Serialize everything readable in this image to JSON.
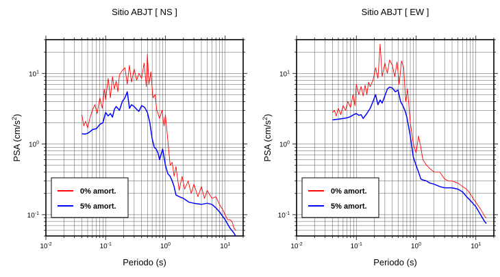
{
  "chart_data": [
    {
      "type": "line",
      "title": "Sitio ABJT [ NS ]",
      "xlabel": "Periodo (s)",
      "ylabel_prefix": "PSA (cm/s",
      "ylabel_sup": "2",
      "ylabel_suffix": ")",
      "x_scale": "log",
      "y_scale": "log",
      "xlim": [
        0.01,
        20
      ],
      "ylim": [
        0.05,
        30
      ],
      "grid": true,
      "legend_position": "bottom-left",
      "x_tick_labels": [
        {
          "value": 0.01,
          "base": "10",
          "exp": "-2"
        },
        {
          "value": 0.1,
          "base": "10",
          "exp": "-1"
        },
        {
          "value": 1,
          "base": "10",
          "exp": "0"
        },
        {
          "value": 10,
          "base": "10",
          "exp": "1"
        }
      ],
      "y_tick_labels": [
        {
          "value": 0.1,
          "base": "10",
          "exp": "-1"
        },
        {
          "value": 1,
          "base": "10",
          "exp": "0"
        },
        {
          "value": 10,
          "base": "10",
          "exp": "1"
        }
      ],
      "series": [
        {
          "name": "0% amort.",
          "color": "#ff0000",
          "x": [
            0.04,
            0.043,
            0.046,
            0.05,
            0.055,
            0.06,
            0.066,
            0.072,
            0.08,
            0.088,
            0.095,
            0.1,
            0.11,
            0.12,
            0.13,
            0.14,
            0.15,
            0.16,
            0.17,
            0.19,
            0.21,
            0.23,
            0.25,
            0.27,
            0.3,
            0.33,
            0.36,
            0.4,
            0.44,
            0.48,
            0.5,
            0.53,
            0.57,
            0.62,
            0.67,
            0.72,
            0.8,
            0.88,
            0.95,
            1.0,
            1.1,
            1.2,
            1.3,
            1.4,
            1.5,
            1.7,
            1.9,
            2.1,
            2.4,
            2.7,
            3.0,
            3.5,
            4.0,
            4.5,
            5.0,
            6.0,
            7.0,
            8.0,
            9.0,
            10.0,
            11.0,
            12.0,
            13.0,
            14.0,
            15.0
          ],
          "y": [
            2.6,
            1.8,
            2.1,
            1.7,
            2.4,
            3.0,
            3.6,
            2.7,
            4.5,
            3.2,
            6.0,
            4.2,
            8.5,
            4.5,
            9.0,
            6.0,
            7.8,
            5.5,
            9.5,
            11.0,
            12.0,
            7.0,
            13.0,
            7.5,
            11.5,
            8.0,
            10.0,
            8.5,
            14.0,
            6.5,
            19.0,
            7.0,
            10.5,
            4.5,
            5.0,
            3.0,
            2.3,
            3.0,
            1.8,
            2.6,
            1.1,
            0.5,
            0.55,
            0.35,
            0.48,
            0.22,
            0.35,
            0.23,
            0.3,
            0.2,
            0.27,
            0.18,
            0.25,
            0.17,
            0.22,
            0.17,
            0.18,
            0.14,
            0.12,
            0.1,
            0.085,
            0.085,
            0.08,
            0.065,
            0.06
          ]
        },
        {
          "name": "5% amort.",
          "color": "#0000ff",
          "x": [
            0.04,
            0.045,
            0.05,
            0.055,
            0.06,
            0.07,
            0.08,
            0.09,
            0.1,
            0.11,
            0.12,
            0.13,
            0.14,
            0.15,
            0.17,
            0.19,
            0.21,
            0.23,
            0.25,
            0.27,
            0.3,
            0.33,
            0.36,
            0.4,
            0.45,
            0.5,
            0.55,
            0.6,
            0.65,
            0.7,
            0.75,
            0.8,
            0.9,
            1.0,
            1.1,
            1.2,
            1.3,
            1.4,
            1.5,
            1.7,
            2.0,
            2.5,
            3.0,
            4.0,
            5.0,
            6.0,
            7.0,
            8.0,
            10.0,
            12.0,
            14.0,
            15.0
          ],
          "y": [
            1.4,
            1.38,
            1.42,
            1.5,
            1.6,
            1.65,
            1.9,
            2.0,
            2.8,
            2.5,
            2.7,
            2.4,
            3.1,
            3.4,
            3.0,
            4.0,
            4.5,
            5.5,
            3.2,
            3.6,
            3.4,
            3.1,
            2.9,
            3.5,
            3.3,
            2.8,
            2.0,
            1.2,
            0.9,
            0.85,
            0.75,
            0.6,
            0.85,
            0.5,
            0.38,
            0.35,
            0.3,
            0.25,
            0.19,
            0.18,
            0.17,
            0.15,
            0.145,
            0.14,
            0.145,
            0.14,
            0.125,
            0.11,
            0.085,
            0.065,
            0.055,
            0.05
          ]
        }
      ]
    },
    {
      "type": "line",
      "title": "Sitio ABJT [ EW ]",
      "xlabel": "Periodo (s)",
      "ylabel_prefix": "PSA (cm/s",
      "ylabel_sup": "2",
      "ylabel_suffix": ")",
      "x_scale": "log",
      "y_scale": "log",
      "xlim": [
        0.01,
        20
      ],
      "ylim": [
        0.05,
        30
      ],
      "grid": true,
      "legend_position": "bottom-left",
      "x_tick_labels": [
        {
          "value": 0.01,
          "base": "10",
          "exp": "-2"
        },
        {
          "value": 0.1,
          "base": "10",
          "exp": "-1"
        },
        {
          "value": 1,
          "base": "10",
          "exp": "0"
        },
        {
          "value": 10,
          "base": "10",
          "exp": "1"
        }
      ],
      "y_tick_labels": [
        {
          "value": 0.1,
          "base": "10",
          "exp": "-1"
        },
        {
          "value": 1,
          "base": "10",
          "exp": "0"
        },
        {
          "value": 10,
          "base": "10",
          "exp": "1"
        }
      ],
      "series": [
        {
          "name": "0% amort.",
          "color": "#ff0000",
          "x": [
            0.04,
            0.043,
            0.046,
            0.05,
            0.055,
            0.06,
            0.066,
            0.072,
            0.08,
            0.088,
            0.095,
            0.1,
            0.11,
            0.12,
            0.13,
            0.14,
            0.15,
            0.16,
            0.17,
            0.19,
            0.21,
            0.23,
            0.25,
            0.27,
            0.3,
            0.33,
            0.36,
            0.4,
            0.44,
            0.48,
            0.52,
            0.57,
            0.62,
            0.67,
            0.72,
            0.8,
            0.9,
            1.0,
            1.1,
            1.2,
            1.3,
            1.5,
            1.7,
            2.0,
            2.5,
            3.0,
            3.5,
            4.0,
            5.0,
            6.0,
            7.0,
            8.0,
            9.0,
            10.0,
            12.0,
            14.0,
            15.0
          ],
          "y": [
            2.8,
            3.0,
            2.5,
            3.2,
            2.6,
            3.5,
            3.0,
            4.0,
            3.3,
            5.0,
            3.5,
            7.0,
            5.0,
            6.5,
            4.8,
            6.8,
            5.0,
            7.5,
            6.5,
            8.0,
            12.0,
            8.5,
            26.0,
            9.0,
            14.0,
            10.0,
            15.5,
            13.0,
            9.0,
            14.5,
            7.0,
            15.0,
            12.0,
            4.0,
            6.0,
            2.0,
            1.0,
            0.75,
            1.3,
            0.9,
            0.6,
            0.5,
            0.45,
            0.4,
            0.4,
            0.32,
            0.3,
            0.3,
            0.28,
            0.25,
            0.23,
            0.2,
            0.17,
            0.15,
            0.12,
            0.095,
            0.09
          ]
        },
        {
          "name": "5% amort.",
          "color": "#0000ff",
          "x": [
            0.04,
            0.05,
            0.06,
            0.07,
            0.08,
            0.09,
            0.1,
            0.11,
            0.12,
            0.13,
            0.15,
            0.17,
            0.19,
            0.21,
            0.23,
            0.25,
            0.27,
            0.3,
            0.33,
            0.36,
            0.4,
            0.45,
            0.5,
            0.55,
            0.6,
            0.65,
            0.7,
            0.8,
            0.9,
            1.0,
            1.1,
            1.2,
            1.3,
            1.5,
            1.7,
            2.0,
            2.5,
            3.0,
            4.0,
            5.0,
            6.0,
            7.0,
            8.0,
            10.0,
            12.0,
            14.0,
            15.0
          ],
          "y": [
            2.2,
            2.25,
            2.3,
            2.35,
            2.45,
            2.6,
            2.7,
            2.55,
            2.6,
            2.3,
            2.7,
            3.2,
            4.0,
            5.0,
            3.6,
            4.2,
            3.8,
            4.8,
            6.0,
            6.4,
            6.2,
            5.5,
            5.8,
            4.0,
            3.5,
            3.0,
            2.4,
            1.3,
            0.65,
            0.5,
            0.4,
            0.32,
            0.31,
            0.3,
            0.28,
            0.27,
            0.25,
            0.24,
            0.24,
            0.23,
            0.21,
            0.18,
            0.16,
            0.13,
            0.1,
            0.08,
            0.075
          ]
        }
      ]
    }
  ]
}
